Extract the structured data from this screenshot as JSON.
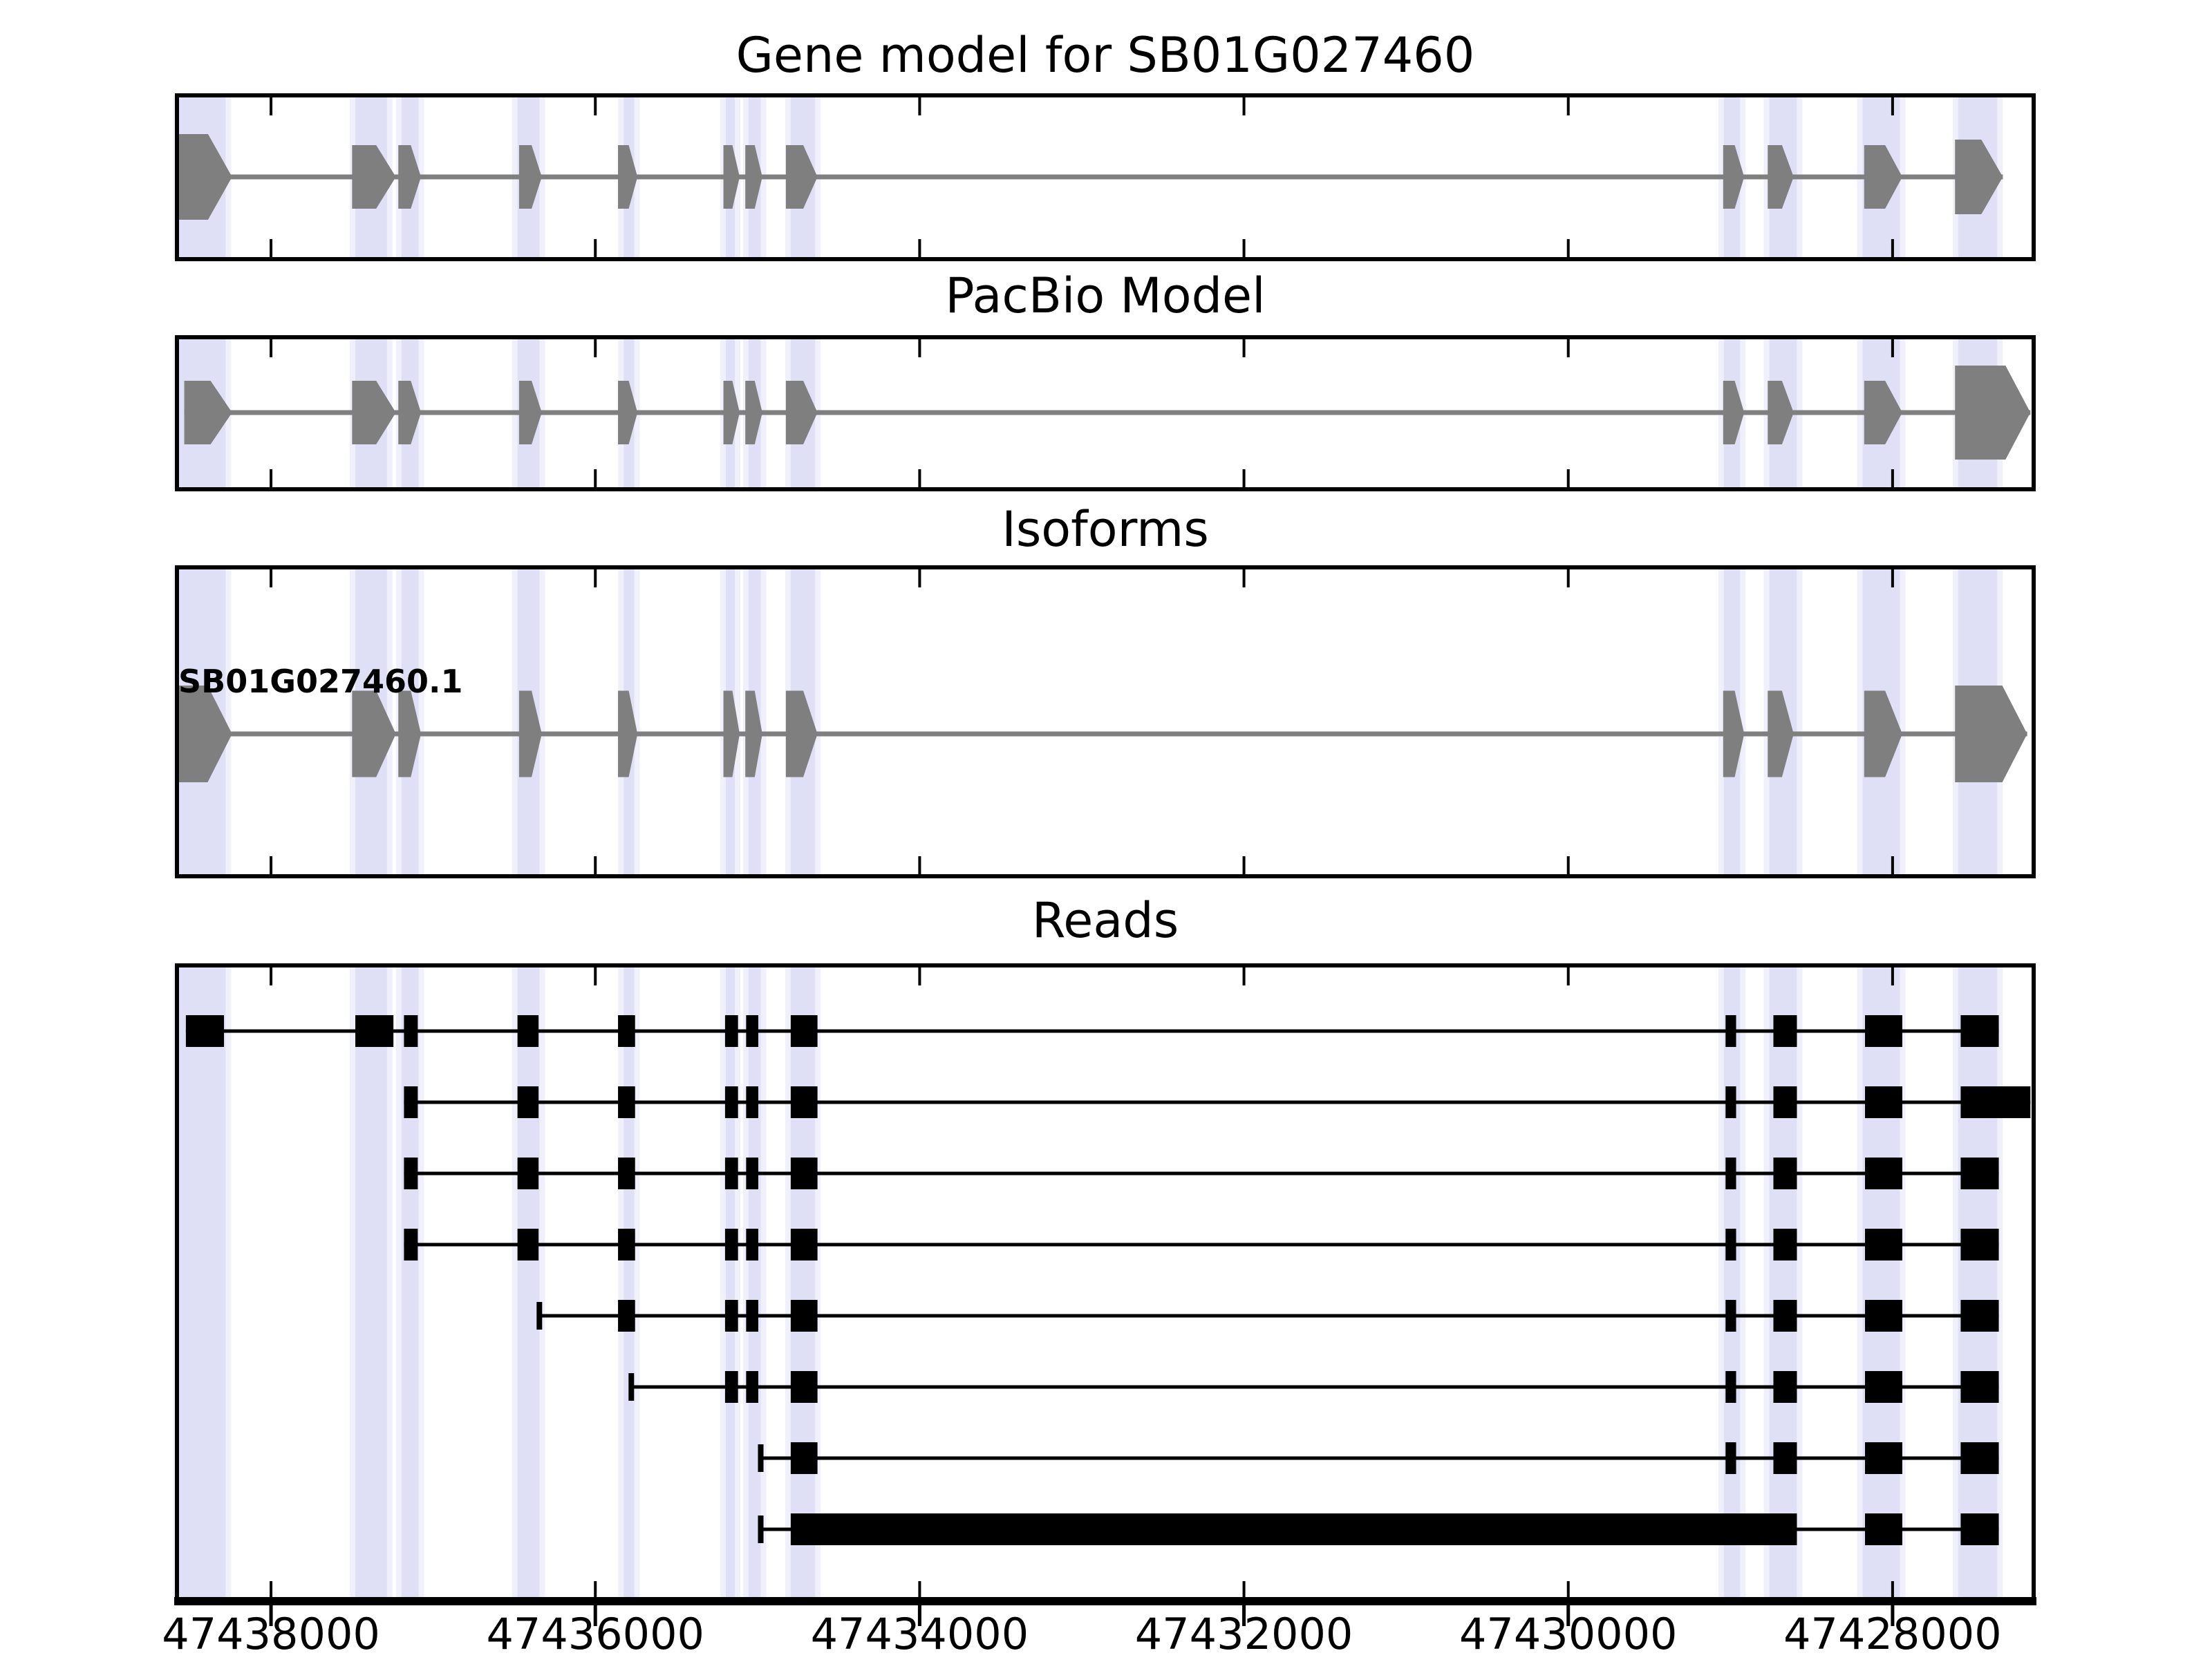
{
  "chart_data": {
    "type": "gene-model-tracks",
    "title": "Gene model for SB01G027460",
    "x_axis": {
      "xlim_left_bp": 47438580,
      "xlim_right_bp": 47427130,
      "tick_positions_bp": [
        47438000,
        47436000,
        47434000,
        47432000,
        47430000,
        47428000
      ],
      "tick_labels": [
        "47438000",
        "47436000",
        "47434000",
        "47432000",
        "47430000",
        "47428000"
      ]
    },
    "colors": {
      "model_fill": "#7f7f7f",
      "intron_line": "#7f7f7f",
      "read_fill": "#000000",
      "highlight": "#8c8cdc",
      "panel_border": "#000000",
      "background": "#ffffff"
    },
    "highlight_regions_bp": [
      [
        47438570,
        47438280
      ],
      [
        47437480,
        47437285
      ],
      [
        47437195,
        47437090
      ],
      [
        47436480,
        47436345
      ],
      [
        47435825,
        47435760
      ],
      [
        47435195,
        47435140
      ],
      [
        47435055,
        47434980
      ],
      [
        47434795,
        47434645
      ],
      [
        47429040,
        47428940
      ],
      [
        47428760,
        47428590
      ],
      [
        47428185,
        47427955
      ],
      [
        47427595,
        47427355
      ]
    ],
    "tracks": [
      {
        "id": "gene_model",
        "title": "Gene model for SB01G027460",
        "type": "model",
        "intron_line_bp": [
          47438570,
          47427320
        ],
        "exons_bp": [
          [
            47438570,
            47438240
          ],
          [
            47437500,
            47437230
          ],
          [
            47437215,
            47437075
          ],
          [
            47436470,
            47436330
          ],
          [
            47435860,
            47435740
          ],
          [
            47435210,
            47435110
          ],
          [
            47435075,
            47434970
          ],
          [
            47434825,
            47434630
          ],
          [
            47429045,
            47428915
          ],
          [
            47428770,
            47428610
          ],
          [
            47428175,
            47427940
          ],
          [
            47427615,
            47427320
          ]
        ]
      },
      {
        "id": "pacbio_model",
        "title": "PacBio Model",
        "type": "model",
        "intron_line_bp": [
          47438535,
          47427150
        ],
        "exons_bp": [
          [
            47438535,
            47438240
          ],
          [
            47437500,
            47437230
          ],
          [
            47437215,
            47437075
          ],
          [
            47436470,
            47436330
          ],
          [
            47435860,
            47435740
          ],
          [
            47435210,
            47435110
          ],
          [
            47435075,
            47434970
          ],
          [
            47434825,
            47434630
          ],
          [
            47429045,
            47428915
          ],
          [
            47428770,
            47428610
          ],
          [
            47428175,
            47427940
          ],
          [
            47427615,
            47427150
          ]
        ]
      },
      {
        "id": "isoforms",
        "title": "Isoforms",
        "type": "model",
        "isoform_label": "SB01G027460.1",
        "intron_line_bp": [
          47438575,
          47427170
        ],
        "exons_bp": [
          [
            47438575,
            47438240
          ],
          [
            47437500,
            47437230
          ],
          [
            47437215,
            47437075
          ],
          [
            47436470,
            47436330
          ],
          [
            47435860,
            47435740
          ],
          [
            47435210,
            47435110
          ],
          [
            47435075,
            47434970
          ],
          [
            47434825,
            47434630
          ],
          [
            47429045,
            47428915
          ],
          [
            47428770,
            47428610
          ],
          [
            47428175,
            47427940
          ],
          [
            47427615,
            47427170
          ]
        ]
      },
      {
        "id": "reads",
        "title": "Reads",
        "type": "reads",
        "reads": [
          {
            "cap_bp": null,
            "exons_bp": [
              [
                47438525,
                47438290
              ],
              [
                47437480,
                47437245
              ],
              [
                47437180,
                47437095
              ],
              [
                47436480,
                47436350
              ],
              [
                47435860,
                47435755
              ],
              [
                47435200,
                47435120
              ],
              [
                47435070,
                47434995
              ],
              [
                47434795,
                47434630
              ],
              [
                47429030,
                47428965
              ],
              [
                47428735,
                47428590
              ],
              [
                47428170,
                47427940
              ],
              [
                47427580,
                47427345
              ]
            ]
          },
          {
            "cap_bp": null,
            "exons_bp": [
              [
                47437180,
                47437095
              ],
              [
                47436480,
                47436350
              ],
              [
                47435860,
                47435755
              ],
              [
                47435200,
                47435120
              ],
              [
                47435070,
                47434995
              ],
              [
                47434795,
                47434630
              ],
              [
                47429030,
                47428965
              ],
              [
                47428735,
                47428590
              ],
              [
                47428170,
                47427940
              ],
              [
                47427580,
                47427150
              ]
            ]
          },
          {
            "cap_bp": null,
            "exons_bp": [
              [
                47437180,
                47437095
              ],
              [
                47436480,
                47436350
              ],
              [
                47435860,
                47435755
              ],
              [
                47435200,
                47435120
              ],
              [
                47435070,
                47434995
              ],
              [
                47434795,
                47434630
              ],
              [
                47429030,
                47428965
              ],
              [
                47428735,
                47428590
              ],
              [
                47428170,
                47427940
              ],
              [
                47427580,
                47427345
              ]
            ]
          },
          {
            "cap_bp": null,
            "exons_bp": [
              [
                47437180,
                47437095
              ],
              [
                47436480,
                47436350
              ],
              [
                47435860,
                47435755
              ],
              [
                47435200,
                47435120
              ],
              [
                47435070,
                47434995
              ],
              [
                47434795,
                47434630
              ],
              [
                47429030,
                47428965
              ],
              [
                47428735,
                47428590
              ],
              [
                47428170,
                47427940
              ],
              [
                47427580,
                47427345
              ]
            ]
          },
          {
            "cap_bp": 47436345,
            "exons_bp": [
              [
                47435860,
                47435755
              ],
              [
                47435200,
                47435120
              ],
              [
                47435070,
                47434995
              ],
              [
                47434795,
                47434630
              ],
              [
                47429030,
                47428965
              ],
              [
                47428735,
                47428590
              ],
              [
                47428170,
                47427940
              ],
              [
                47427580,
                47427345
              ]
            ]
          },
          {
            "cap_bp": 47435778,
            "exons_bp": [
              [
                47435200,
                47435120
              ],
              [
                47435070,
                47434995
              ],
              [
                47434795,
                47434630
              ],
              [
                47429030,
                47428965
              ],
              [
                47428735,
                47428590
              ],
              [
                47428170,
                47427940
              ],
              [
                47427580,
                47427345
              ]
            ]
          },
          {
            "cap_bp": 47434980,
            "exons_bp": [
              [
                47434795,
                47434630
              ],
              [
                47429030,
                47428965
              ],
              [
                47428735,
                47428590
              ],
              [
                47428170,
                47427940
              ],
              [
                47427580,
                47427345
              ]
            ]
          },
          {
            "cap_bp": 47434980,
            "exons_bp": [
              [
                47434795,
                47428630
              ],
              [
                47429030,
                47428965
              ],
              [
                47428735,
                47428590
              ],
              [
                47428170,
                47427940
              ],
              [
                47427580,
                47427345
              ]
            ]
          }
        ]
      }
    ]
  }
}
